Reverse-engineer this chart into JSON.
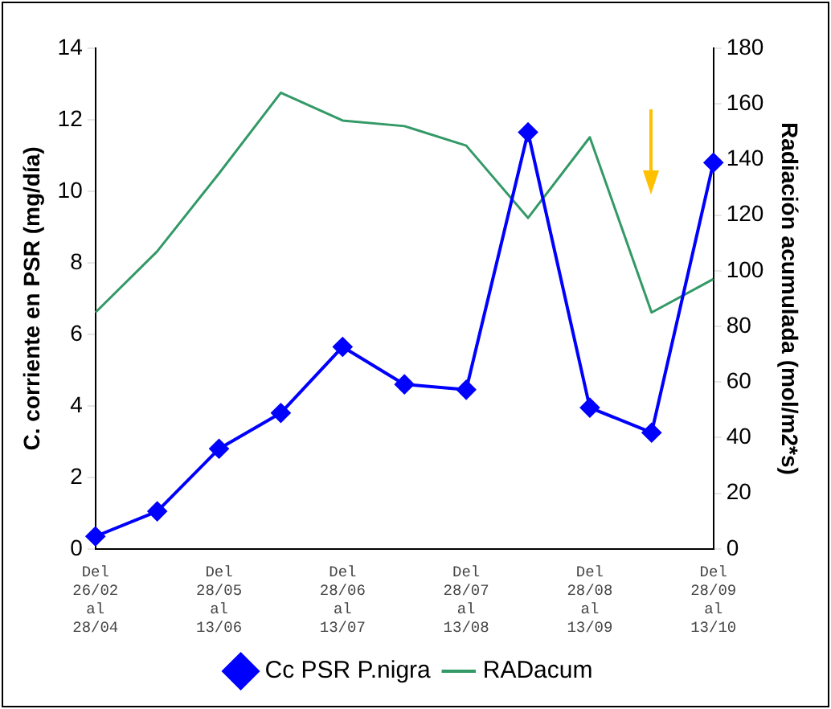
{
  "chart_data": {
    "type": "line",
    "ylabel": "C. corriente en PSR (mg/día)",
    "y2label": "Radiación acumulada (mol/m2*s)",
    "categories": [
      "Del 26/02 al 28/04",
      null,
      "Del 28/05 al 13/06",
      null,
      "Del 28/06 al 13/07",
      null,
      "Del 28/07 al 13/08",
      null,
      "Del 28/08 al 13/09",
      null,
      "Del 28/09 al 13/10"
    ],
    "series": [
      {
        "name": "Cc PSR P.nigra",
        "color": "#0000ff",
        "marker": "diamond",
        "values": [
          0.35,
          1.05,
          2.8,
          3.8,
          5.65,
          4.6,
          4.45,
          11.65,
          3.95,
          3.25,
          10.8
        ]
      },
      {
        "name": "RADacum",
        "color": "#339966",
        "marker": "none",
        "axis": "y2",
        "values": [
          85,
          107,
          135,
          164,
          154,
          152,
          145,
          119,
          148,
          85,
          97
        ]
      }
    ],
    "ylim": [
      0,
      14
    ],
    "yticks": [
      0,
      2,
      4,
      6,
      8,
      10,
      12,
      14
    ],
    "y2lim": [
      0,
      180
    ],
    "y2ticks": [
      0,
      20,
      40,
      60,
      80,
      100,
      120,
      140,
      160,
      180
    ],
    "grid": false,
    "legend": "bottom"
  }
}
